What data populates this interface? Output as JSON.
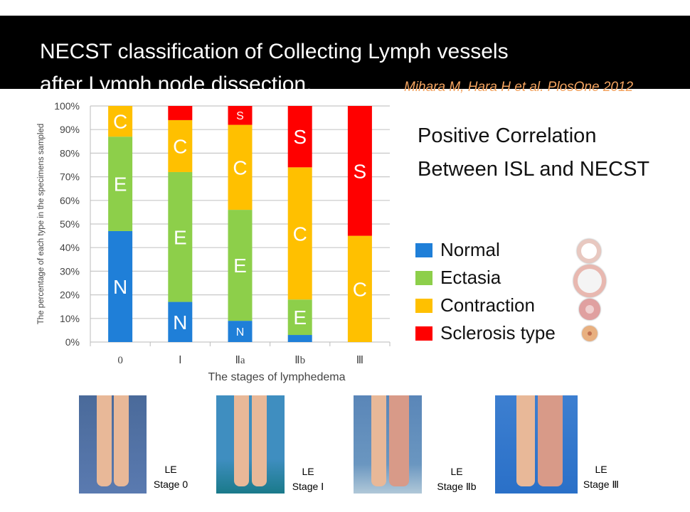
{
  "title_line1": "NECST classification of Collecting Lymph vessels",
  "title_line2": "after Lymph node dissection.",
  "citation": "Mihara M, Hara H et al.  PlosOne 2012",
  "heading_line1": "Positive Correlation",
  "heading_line2": "Between ISL and NECST",
  "legend": [
    {
      "label": "Normal",
      "color": "#1f7fd8",
      "icon": "normal-vessel-cross-section-icon"
    },
    {
      "label": "Ectasia",
      "color": "#8dcf4a",
      "icon": "ectasia-vessel-cross-section-icon"
    },
    {
      "label": "Contraction",
      "color": "#ffc000",
      "icon": "contraction-vessel-cross-section-icon"
    },
    {
      "label": "Sclerosis type",
      "color": "#ff0000",
      "icon": "sclerosis-vessel-cross-section-icon"
    }
  ],
  "chart_data": {
    "type": "bar",
    "stacked": true,
    "categories": [
      "0",
      "Ⅰ",
      "Ⅱa",
      "Ⅱb",
      "Ⅲ"
    ],
    "xlabel": "The stages of lymphedema",
    "ylabel": "The percentage of each type in the specimens sampled",
    "ylim": [
      0,
      100
    ],
    "yticks": [
      "0%",
      "10%",
      "20%",
      "30%",
      "40%",
      "50%",
      "60%",
      "70%",
      "80%",
      "90%",
      "100%"
    ],
    "grid": true,
    "series": [
      {
        "name": "Normal",
        "letter": "N",
        "color": "#1f7fd8",
        "values": [
          47,
          17,
          9,
          3,
          0
        ],
        "labels": [
          "N",
          "N",
          "N",
          "",
          ""
        ]
      },
      {
        "name": "Ectasia",
        "letter": "E",
        "color": "#8dcf4a",
        "values": [
          40,
          55,
          47,
          15,
          0
        ],
        "labels": [
          "E",
          "E",
          "E",
          "E",
          ""
        ]
      },
      {
        "name": "Contraction",
        "letter": "C",
        "color": "#ffc000",
        "values": [
          13,
          22,
          36,
          56,
          45
        ],
        "labels": [
          "C",
          "C",
          "C",
          "C",
          "C"
        ]
      },
      {
        "name": "Sclerosis type",
        "letter": "S",
        "color": "#ff0000",
        "values": [
          0,
          6,
          8,
          26,
          55
        ],
        "labels": [
          "",
          "",
          "S",
          "S",
          "S"
        ]
      }
    ]
  },
  "photos": [
    {
      "le": "LE",
      "stage": "Stage 0"
    },
    {
      "le": "LE",
      "stage": "Stage Ⅰ"
    },
    {
      "le": "LE",
      "stage": "Stage Ⅱb"
    },
    {
      "le": "LE",
      "stage": "Stage Ⅲ"
    }
  ]
}
